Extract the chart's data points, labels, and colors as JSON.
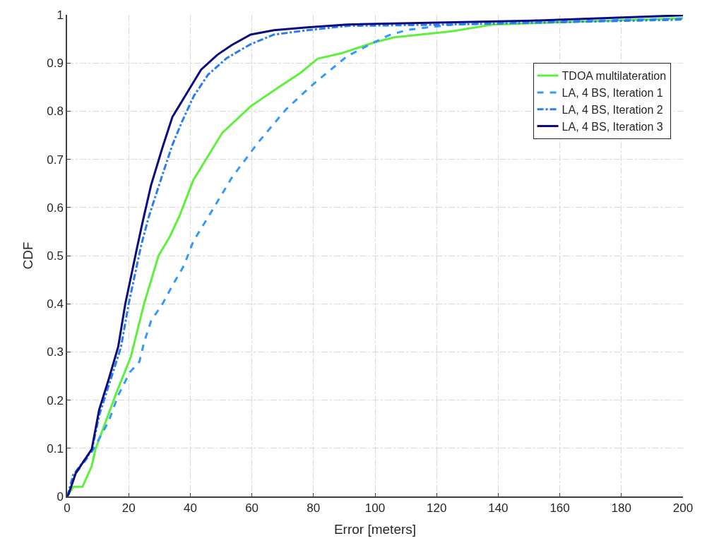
{
  "chart_data": {
    "type": "line",
    "xlabel": "Error [meters]",
    "ylabel": "CDF",
    "xlim": [
      0,
      200
    ],
    "ylim": [
      0,
      1
    ],
    "xticks": [
      0,
      20,
      40,
      60,
      80,
      100,
      120,
      140,
      160,
      180,
      200
    ],
    "yticks": [
      0,
      0.1,
      0.2,
      0.3,
      0.4,
      0.5,
      0.6,
      0.7,
      0.8,
      0.9,
      1
    ],
    "grid": true,
    "legend": "top right",
    "marker": "none",
    "series": [
      {
        "name": "TDOA multilateration",
        "color": "#5ef03c",
        "line_style": "solid",
        "x": [
          0,
          2,
          5,
          8,
          9.2,
          16,
          20.7,
          25,
          29.7,
          33.4,
          36.6,
          41,
          50.4,
          59.6,
          68.8,
          75.7,
          81.4,
          89,
          99.4,
          106,
          125,
          138.5,
          200
        ],
        "values": [
          0,
          0.02,
          0.02,
          0.063,
          0.098,
          0.215,
          0.29,
          0.4,
          0.5,
          0.54,
          0.584,
          0.657,
          0.755,
          0.81,
          0.85,
          0.879,
          0.909,
          0.92,
          0.942,
          0.953,
          0.966,
          0.98,
          0.993
        ]
      },
      {
        "name": "LA, 4 BS, Iteration 1",
        "color": "#3399ff",
        "line_style": "dashed",
        "x": [
          0,
          2.8,
          8,
          13.5,
          16.6,
          20.4,
          23.5,
          25,
          27.3,
          31,
          34.2,
          38,
          41,
          45.8,
          53.4,
          61.9,
          71,
          77,
          80.5,
          90.9,
          99.4,
          104.7,
          110.7,
          125.4,
          151,
          200
        ],
        "values": [
          0,
          0.048,
          0.092,
          0.156,
          0.21,
          0.258,
          0.28,
          0.32,
          0.365,
          0.4,
          0.438,
          0.48,
          0.53,
          0.58,
          0.661,
          0.734,
          0.803,
          0.839,
          0.859,
          0.914,
          0.942,
          0.958,
          0.969,
          0.98,
          0.985,
          0.992
        ]
      },
      {
        "name": "LA, 4 BS, Iteration 2",
        "color": "#2b7de9",
        "line_style": "dashdot",
        "x": [
          0,
          0.5,
          2,
          8,
          10.5,
          14,
          17.5,
          20,
          22,
          24,
          26.5,
          30.4,
          34.2,
          37.3,
          41.2,
          45.8,
          51.8,
          59.6,
          67.2,
          78,
          91,
          125,
          200
        ],
        "values": [
          0,
          0.01,
          0.045,
          0.095,
          0.17,
          0.24,
          0.31,
          0.4,
          0.46,
          0.52,
          0.58,
          0.657,
          0.73,
          0.778,
          0.832,
          0.876,
          0.91,
          0.939,
          0.959,
          0.968,
          0.977,
          0.98,
          0.99
        ]
      },
      {
        "name": "LA, 4 BS, Iteration 3",
        "color": "#0c0c80",
        "line_style": "solid",
        "x": [
          0,
          0.5,
          2.8,
          8,
          10.4,
          13.5,
          16.6,
          18.9,
          21.2,
          22.7,
          24.6,
          27.3,
          31,
          34.2,
          38,
          43.5,
          48.8,
          53.4,
          59.6,
          67.2,
          78,
          91,
          151,
          200
        ],
        "values": [
          0,
          0.005,
          0.048,
          0.098,
          0.18,
          0.243,
          0.311,
          0.4,
          0.47,
          0.516,
          0.572,
          0.647,
          0.725,
          0.788,
          0.828,
          0.886,
          0.917,
          0.937,
          0.959,
          0.968,
          0.974,
          0.98,
          0.988,
          0.999
        ]
      }
    ]
  }
}
